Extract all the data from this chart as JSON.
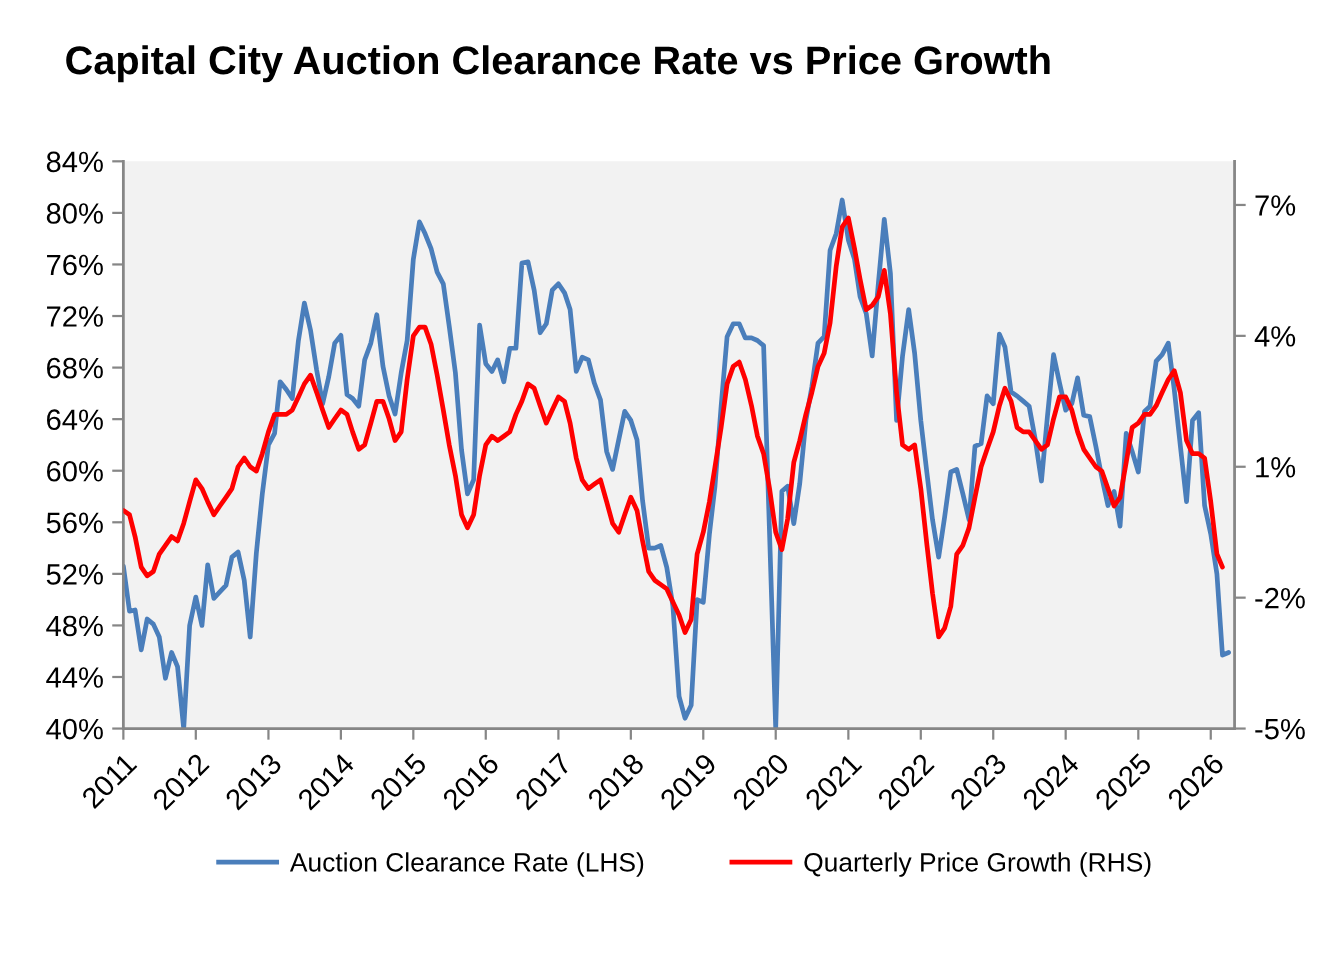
{
  "chart_data": {
    "type": "line",
    "title": "Capital City Auction Clearance Rate vs Price Growth",
    "xlim": [
      "2011-01",
      "2026-05"
    ],
    "xticks": [
      "2011",
      "2012",
      "2013",
      "2014",
      "2015",
      "2016",
      "2017",
      "2018",
      "2019",
      "2020",
      "2021",
      "2022",
      "2023",
      "2024",
      "2025",
      "2026"
    ],
    "ylim": [
      40,
      84
    ],
    "yticks": [
      {
        "value": 40,
        "label": "40%"
      },
      {
        "value": 44,
        "label": "44%"
      },
      {
        "value": 48,
        "label": "48%"
      },
      {
        "value": 52,
        "label": "52%"
      },
      {
        "value": 56,
        "label": "56%"
      },
      {
        "value": 60,
        "label": "60%"
      },
      {
        "value": 64,
        "label": "64%"
      },
      {
        "value": 68,
        "label": "68%"
      },
      {
        "value": 72,
        "label": "72%"
      },
      {
        "value": 76,
        "label": "76%"
      },
      {
        "value": 80,
        "label": "80%"
      },
      {
        "value": 84,
        "label": "84%"
      }
    ],
    "y2lim": [
      -5,
      8
    ],
    "y2ticks": [
      {
        "value": -5,
        "label": "-5%"
      },
      {
        "value": -2,
        "label": "-2%"
      },
      {
        "value": 1,
        "label": "1%"
      },
      {
        "value": 4,
        "label": "4%"
      },
      {
        "value": 7,
        "label": "7%"
      }
    ],
    "grid": false,
    "legend": "bottom",
    "line_style": "solid",
    "series": [
      {
        "name": "Auction Clearance Rate (LHS)",
        "color": "#4a7ebb",
        "axis": "y",
        "x": [
          "2011-01",
          "2011-02",
          "2011-03",
          "2011-04",
          "2011-05",
          "2011-06",
          "2011-07",
          "2011-08",
          "2011-09",
          "2011-10",
          "2011-11",
          "2011-12",
          "2012-01",
          "2012-02",
          "2012-03",
          "2012-04",
          "2012-05",
          "2012-06",
          "2012-07",
          "2012-08",
          "2012-09",
          "2012-10",
          "2012-11",
          "2012-12",
          "2013-01",
          "2013-02",
          "2013-03",
          "2013-04",
          "2013-05",
          "2013-06",
          "2013-07",
          "2013-08",
          "2013-09",
          "2013-10",
          "2013-11",
          "2013-12",
          "2014-01",
          "2014-02",
          "2014-03",
          "2014-04",
          "2014-05",
          "2014-06",
          "2014-07",
          "2014-08",
          "2014-09",
          "2014-10",
          "2014-11",
          "2014-12",
          "2015-01",
          "2015-02",
          "2015-03",
          "2015-04",
          "2015-05",
          "2015-06",
          "2015-07",
          "2015-08",
          "2015-09",
          "2015-10",
          "2015-11",
          "2015-12",
          "2016-01",
          "2016-02",
          "2016-03",
          "2016-04",
          "2016-05",
          "2016-06",
          "2016-07",
          "2016-08",
          "2016-09",
          "2016-10",
          "2016-11",
          "2016-12",
          "2017-01",
          "2017-02",
          "2017-03",
          "2017-04",
          "2017-05",
          "2017-06",
          "2017-07",
          "2017-08",
          "2017-09",
          "2017-10",
          "2017-11",
          "2017-12",
          "2018-01",
          "2018-02",
          "2018-03",
          "2018-04",
          "2018-05",
          "2018-06",
          "2018-07",
          "2018-08",
          "2018-09",
          "2018-10",
          "2018-11",
          "2018-12",
          "2019-01",
          "2019-02",
          "2019-03",
          "2019-04",
          "2019-05",
          "2019-06",
          "2019-07",
          "2019-08",
          "2019-09",
          "2019-10",
          "2019-11",
          "2020-01",
          "2020-02",
          "2020-03",
          "2020-04",
          "2020-05",
          "2020-06",
          "2020-07",
          "2020-08",
          "2020-09",
          "2020-10",
          "2020-11",
          "2020-12",
          "2021-01",
          "2021-02",
          "2021-03",
          "2021-04",
          "2021-05",
          "2021-06",
          "2021-07",
          "2021-08",
          "2021-09",
          "2021-10",
          "2021-11",
          "2021-12",
          "2022-01",
          "2022-02",
          "2022-03",
          "2022-04",
          "2022-05",
          "2022-06",
          "2022-07",
          "2022-08",
          "2022-09",
          "2022-10",
          "2022-11",
          "2022-12",
          "2023-01",
          "2023-02",
          "2023-03",
          "2023-04",
          "2023-05",
          "2023-06",
          "2023-07",
          "2023-08",
          "2023-09",
          "2023-10",
          "2023-11",
          "2023-12",
          "2024-01",
          "2024-02",
          "2024-03",
          "2024-04",
          "2024-05",
          "2024-06",
          "2024-07",
          "2024-08",
          "2024-09",
          "2024-10",
          "2024-11",
          "2024-12",
          "2025-01",
          "2025-02",
          "2025-03",
          "2025-04",
          "2025-05",
          "2025-06",
          "2025-07",
          "2025-08",
          "2025-09",
          "2025-10",
          "2025-11",
          "2025-12",
          "2026-01",
          "2026-02",
          "2026-03",
          "2026-04"
        ],
        "values": [
          52.6,
          49.1,
          49.2,
          46.1,
          48.5,
          48.1,
          47.1,
          43.9,
          45.9,
          44.8,
          40,
          48.0,
          50.2,
          48.0,
          52.7,
          50.1,
          50.6,
          51.1,
          53.3,
          53.7,
          51.5,
          47.1,
          53.6,
          58.2,
          62.0,
          62.9,
          66.9,
          66.3,
          65.6,
          70.1,
          73.0,
          70.9,
          67.8,
          65.2,
          67.3,
          69.9,
          70.5,
          65.9,
          65.6,
          65.0,
          68.6,
          69.9,
          72.1,
          68.1,
          65.8,
          64.4,
          67.6,
          70.1,
          76.4,
          79.3,
          78.4,
          77.2,
          75.4,
          74.5,
          71.2,
          67.6,
          61.6,
          58.2,
          59.3,
          71.3,
          68.3,
          67.7,
          68.6,
          66.9,
          69.5,
          69.5,
          76.1,
          76.2,
          74.0,
          70.7,
          71.4,
          74.0,
          74.5,
          73.8,
          72.5,
          67.7,
          68.8,
          68.6,
          66.8,
          65.5,
          61.5,
          60.1,
          62.4,
          64.6,
          63.9,
          62.4,
          57.7,
          54.0,
          54.0,
          54.2,
          52.5,
          49.5,
          42.5,
          40.8,
          41.8,
          50.0,
          49.8,
          55.1,
          58.8,
          65.0,
          70.4,
          71.4,
          71.4,
          70.3,
          70.3,
          70.1,
          69.7,
          40,
          58.4,
          58.8,
          55.9,
          59.0,
          63.9,
          66.5,
          69.9,
          70.4,
          77.1,
          78.4,
          81.0,
          77.9,
          76.4,
          73.5,
          72.2,
          68.9,
          74.5,
          79.5,
          75.3,
          63.9,
          68.9,
          72.5,
          69.1,
          63.9,
          59.8,
          56.2,
          53.3,
          56.4,
          59.9,
          60.1,
          58.2,
          56.2,
          61.9,
          62.1,
          65.8,
          65.2,
          70.6,
          69.6,
          66.1,
          65.8,
          65.4,
          65.0,
          62.4,
          59.2,
          64.2,
          69.0,
          66.8,
          64.7,
          65.2,
          67.2,
          64.3,
          64.2,
          61.9,
          59.5,
          57.3,
          58.4,
          55.7,
          62.9,
          61.5,
          59.9,
          64.6,
          65.0,
          68.5,
          69.0,
          69.9,
          66.3,
          61.9,
          57.6,
          63.9,
          64.5,
          57.3,
          55.1,
          52.0,
          45.7,
          45.9
        ]
      },
      {
        "name": "Quarterly Price Growth (RHS)",
        "color": "#ff0000",
        "axis": "y2",
        "x": [
          "2011-01",
          "2011-02",
          "2011-03",
          "2011-04",
          "2011-05",
          "2011-06",
          "2011-07",
          "2011-08",
          "2011-09",
          "2011-10",
          "2011-11",
          "2011-12",
          "2012-01",
          "2012-02",
          "2012-03",
          "2012-04",
          "2012-05",
          "2012-06",
          "2012-07",
          "2012-08",
          "2012-09",
          "2012-10",
          "2012-11",
          "2012-12",
          "2013-01",
          "2013-02",
          "2013-03",
          "2013-04",
          "2013-05",
          "2013-06",
          "2013-07",
          "2013-08",
          "2013-09",
          "2013-10",
          "2013-11",
          "2013-12",
          "2014-01",
          "2014-02",
          "2014-03",
          "2014-04",
          "2014-05",
          "2014-06",
          "2014-07",
          "2014-08",
          "2014-09",
          "2014-10",
          "2014-11",
          "2014-12",
          "2015-01",
          "2015-02",
          "2015-03",
          "2015-04",
          "2015-05",
          "2015-06",
          "2015-07",
          "2015-08",
          "2015-09",
          "2015-10",
          "2015-11",
          "2015-12",
          "2016-01",
          "2016-02",
          "2016-03",
          "2016-04",
          "2016-05",
          "2016-06",
          "2016-07",
          "2016-08",
          "2016-09",
          "2016-10",
          "2016-11",
          "2016-12",
          "2017-01",
          "2017-02",
          "2017-03",
          "2017-04",
          "2017-05",
          "2017-06",
          "2017-07",
          "2017-08",
          "2017-09",
          "2017-10",
          "2017-11",
          "2017-12",
          "2018-01",
          "2018-02",
          "2018-03",
          "2018-04",
          "2018-05",
          "2018-06",
          "2018-07",
          "2018-08",
          "2018-09",
          "2018-10",
          "2018-11",
          "2018-12",
          "2019-01",
          "2019-02",
          "2019-03",
          "2019-04",
          "2019-05",
          "2019-06",
          "2019-07",
          "2019-08",
          "2019-09",
          "2019-10",
          "2019-11",
          "2019-12",
          "2020-01",
          "2020-02",
          "2020-03",
          "2020-04",
          "2020-05",
          "2020-06",
          "2020-07",
          "2020-08",
          "2020-09",
          "2020-10",
          "2020-11",
          "2020-12",
          "2021-01",
          "2021-02",
          "2021-03",
          "2021-04",
          "2021-05",
          "2021-06",
          "2021-07",
          "2021-08",
          "2021-09",
          "2021-10",
          "2021-11",
          "2021-12",
          "2022-01",
          "2022-02",
          "2022-03",
          "2022-04",
          "2022-05",
          "2022-06",
          "2022-07",
          "2022-08",
          "2022-09",
          "2022-10",
          "2022-11",
          "2022-12",
          "2023-01",
          "2023-02",
          "2023-03",
          "2023-04",
          "2023-05",
          "2023-06",
          "2023-07",
          "2023-08",
          "2023-09",
          "2023-10",
          "2023-11",
          "2023-12",
          "2024-01",
          "2024-02",
          "2024-03",
          "2024-04",
          "2024-05",
          "2024-06",
          "2024-07",
          "2024-08",
          "2024-09",
          "2024-10",
          "2024-11",
          "2024-12",
          "2025-01",
          "2025-02",
          "2025-03",
          "2025-04",
          "2025-05",
          "2025-06",
          "2025-07",
          "2025-08",
          "2025-09",
          "2025-10",
          "2025-11",
          "2025-12",
          "2026-01",
          "2026-02",
          "2026-03"
        ],
        "values": [
          0.0,
          -0.1,
          -0.6,
          -1.3,
          -1.5,
          -1.4,
          -1.0,
          -0.8,
          -0.6,
          -0.7,
          -0.3,
          0.2,
          0.7,
          0.5,
          0.2,
          -0.1,
          0.1,
          0.3,
          0.5,
          1.0,
          1.2,
          1.0,
          0.9,
          1.3,
          1.8,
          2.2,
          2.2,
          2.2,
          2.3,
          2.6,
          2.9,
          3.1,
          2.7,
          2.3,
          1.9,
          2.1,
          2.3,
          2.2,
          1.8,
          1.4,
          1.5,
          2.0,
          2.5,
          2.5,
          2.1,
          1.6,
          1.8,
          3.0,
          4.0,
          4.2,
          4.2,
          3.8,
          3.1,
          2.3,
          1.5,
          0.8,
          -0.1,
          -0.4,
          -0.1,
          0.8,
          1.5,
          1.7,
          1.6,
          1.7,
          1.8,
          2.2,
          2.5,
          2.9,
          2.8,
          2.4,
          2.0,
          2.3,
          2.6,
          2.5,
          2.0,
          1.2,
          0.7,
          0.5,
          0.6,
          0.7,
          0.2,
          -0.3,
          -0.5,
          -0.1,
          0.3,
          0.0,
          -0.7,
          -1.4,
          -1.6,
          -1.7,
          -1.8,
          -2.1,
          -2.4,
          -2.8,
          -2.5,
          -1.0,
          -0.5,
          0.2,
          1.0,
          1.9,
          2.9,
          3.3,
          3.4,
          3.0,
          2.4,
          1.7,
          1.3,
          0.5,
          -0.5,
          -0.9,
          -0.2,
          1.1,
          1.6,
          2.2,
          2.7,
          3.3,
          3.6,
          4.3,
          5.6,
          6.5,
          6.7,
          6.0,
          5.3,
          4.6,
          4.7,
          4.9,
          5.5,
          4.5,
          2.7,
          1.5,
          1.4,
          1.5,
          0.5,
          -0.8,
          -1.9,
          -2.9,
          -2.7,
          -2.2,
          -1.0,
          -0.8,
          -0.4,
          0.3,
          1.0,
          1.4,
          1.8,
          2.4,
          2.8,
          2.5,
          1.9,
          1.8,
          1.8,
          1.6,
          1.4,
          1.5,
          2.1,
          2.6,
          2.6,
          2.3,
          1.8,
          1.4,
          1.2,
          1.0,
          0.9,
          0.5,
          0.1,
          0.3,
          1.1,
          1.9,
          2.0,
          2.2,
          2.2,
          2.4,
          2.7,
          3.0,
          3.2,
          2.7,
          1.6,
          1.3,
          1.3,
          1.2,
          0.2,
          -1.0,
          -1.3
        ]
      }
    ]
  }
}
